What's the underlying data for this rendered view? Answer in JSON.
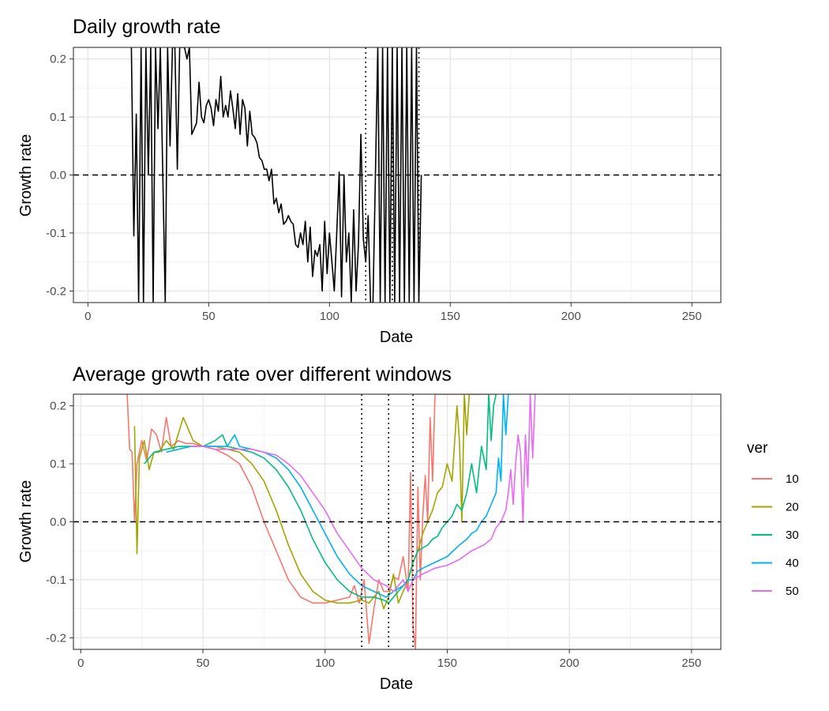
{
  "chart_data": [
    {
      "type": "line",
      "title": "Daily growth rate",
      "xlabel": "Date",
      "ylabel": "Growth rate",
      "xlim": [
        -6,
        262
      ],
      "ylim": [
        -0.22,
        0.22
      ],
      "x_ticks": [
        0,
        50,
        100,
        150,
        200,
        250
      ],
      "y_ticks": [
        0.2,
        0.1,
        0.0,
        -0.1,
        -0.2
      ],
      "x_tick_labels": [
        "0",
        "50",
        "100",
        "150",
        "200",
        "250"
      ],
      "y_tick_labels": [
        "0.2",
        "0.1",
        "0.0",
        "-0.1",
        "-0.2"
      ],
      "grid": true,
      "hline": 0,
      "vlines": [
        115,
        126,
        137
      ],
      "colors": {
        "line": "#000000"
      },
      "series": [
        {
          "x": [
            18,
            19,
            20,
            21,
            22,
            23,
            24,
            25,
            26,
            27,
            28,
            29,
            30,
            31,
            32,
            33,
            34,
            35,
            36,
            37,
            38,
            39,
            40,
            41,
            42,
            43,
            44,
            45,
            46,
            47,
            48,
            49,
            50,
            51,
            52,
            53,
            54,
            55,
            56,
            57,
            58,
            59,
            60,
            61,
            62,
            63,
            64,
            65,
            66,
            67,
            68,
            69,
            70,
            71,
            72,
            73,
            74,
            75,
            76,
            77,
            78,
            79,
            80,
            81,
            82,
            83,
            84,
            85,
            86,
            87,
            88,
            89,
            90,
            91,
            92,
            93,
            94,
            95,
            96,
            97,
            98,
            99,
            100,
            101,
            102,
            103,
            104,
            105,
            106,
            107,
            108,
            109,
            110,
            111,
            112,
            113,
            114,
            115,
            116,
            117,
            118,
            119,
            120,
            121,
            122,
            123,
            124,
            125,
            126,
            127,
            128,
            129,
            130,
            131,
            132,
            133,
            134,
            135,
            136,
            137,
            138
          ],
          "values": [
            0.22,
            -0.105,
            0.105,
            -0.22,
            0.22,
            -0.22,
            0.22,
            0.0,
            0.22,
            -0.22,
            0.22,
            0.08,
            0.22,
            0.0,
            -0.22,
            0.22,
            0.05,
            0.22,
            0.22,
            0.01,
            0.22,
            0.22,
            0.22,
            0.2,
            0.22,
            0.07,
            0.08,
            0.09,
            0.16,
            0.1,
            0.09,
            0.12,
            0.13,
            0.115,
            0.085,
            0.13,
            0.11,
            0.17,
            0.1,
            0.12,
            0.1,
            0.145,
            0.115,
            0.08,
            0.14,
            0.07,
            0.13,
            0.115,
            0.05,
            0.11,
            0.07,
            0.065,
            0.055,
            0.03,
            0.025,
            0.01,
            0.01,
            -0.01,
            0.01,
            -0.05,
            -0.04,
            -0.065,
            -0.05,
            -0.085,
            -0.08,
            -0.07,
            -0.08,
            -0.085,
            -0.12,
            -0.125,
            -0.1,
            -0.12,
            -0.08,
            -0.15,
            -0.09,
            -0.175,
            -0.13,
            -0.14,
            -0.12,
            -0.2,
            -0.08,
            -0.17,
            -0.1,
            -0.15,
            -0.2,
            -0.1,
            0.005,
            -0.21,
            0.0,
            -0.15,
            -0.1,
            -0.22,
            -0.06,
            -0.2,
            -0.12,
            0.07,
            -0.11,
            -0.15,
            -0.07,
            -0.22,
            -0.22,
            0.0,
            0.22,
            -0.22,
            0.22,
            -0.22,
            0.22,
            -0.22,
            0.22,
            -0.22,
            0.22,
            -0.22,
            0.22,
            -0.22,
            0.22,
            -0.22,
            0.22,
            -0.22,
            0.22,
            -0.22,
            0.0
          ]
        }
      ]
    },
    {
      "type": "line",
      "title": "Average growth rate over different windows",
      "xlabel": "Date",
      "ylabel": "Growth rate",
      "xlim": [
        -3,
        262
      ],
      "ylim": [
        -0.22,
        0.22
      ],
      "x_ticks": [
        0,
        50,
        100,
        150,
        200,
        250
      ],
      "y_ticks": [
        0.2,
        0.1,
        0.0,
        -0.1,
        -0.2
      ],
      "x_tick_labels": [
        "0",
        "50",
        "100",
        "150",
        "200",
        "250"
      ],
      "y_tick_labels": [
        "0.2",
        "0.1",
        "0.0",
        "-0.1",
        "-0.2"
      ],
      "grid": true,
      "hline": 0,
      "vlines": [
        115,
        126,
        136
      ],
      "legend": {
        "title": "ver",
        "position": "right"
      },
      "series": [
        {
          "name": "10",
          "color": "#F8766D",
          "x": [
            19,
            20,
            21,
            22,
            23,
            25,
            27,
            29,
            31,
            33,
            35,
            37,
            40,
            43,
            46,
            50,
            55,
            60,
            65,
            70,
            75,
            80,
            85,
            90,
            95,
            100,
            105,
            110,
            112,
            114,
            116,
            118,
            120,
            122,
            124,
            126,
            128,
            130,
            132,
            134,
            135,
            136,
            137,
            138,
            139,
            140,
            141,
            142,
            143,
            144,
            145,
            146,
            147,
            148,
            149,
            150,
            151,
            152,
            153,
            154,
            155,
            156,
            157,
            158,
            159,
            160,
            161,
            162,
            163,
            164,
            165,
            166,
            167,
            168,
            169,
            170
          ],
          "values": [
            0.22,
            0.125,
            0.12,
            0.0,
            0.1,
            0.14,
            0.105,
            0.16,
            0.15,
            0.12,
            0.18,
            0.13,
            0.14,
            0.135,
            0.135,
            0.13,
            0.125,
            0.115,
            0.1,
            0.06,
            0.0,
            -0.05,
            -0.1,
            -0.13,
            -0.14,
            -0.14,
            -0.135,
            -0.13,
            -0.11,
            -0.14,
            -0.1,
            -0.21,
            -0.15,
            -0.1,
            -0.12,
            -0.12,
            -0.095,
            -0.1,
            -0.06,
            -0.12,
            0.085,
            -0.18,
            -0.22,
            0.06,
            -0.1,
            0.01,
            0.08,
            0.0,
            0.18,
            0.07,
            0.22,
            0.22,
            0.22,
            0.22,
            0.22,
            0.22,
            0.22,
            0.22,
            0.22,
            0.22,
            0.22,
            0.22,
            0.22,
            0.22,
            0.22,
            0.22,
            0.22,
            0.22,
            0.22,
            0.22,
            0.22,
            0.22,
            0.22,
            0.22,
            0.22,
            0.22
          ]
        },
        {
          "name": "20",
          "color": "#A3A500",
          "x": [
            22,
            23,
            24,
            26,
            28,
            30,
            32,
            35,
            38,
            42,
            46,
            50,
            55,
            60,
            65,
            70,
            75,
            80,
            85,
            90,
            95,
            100,
            105,
            110,
            115,
            118,
            120,
            122,
            124,
            126,
            128,
            130,
            132,
            134,
            136,
            138,
            140,
            142,
            144,
            146,
            148,
            150,
            152,
            154,
            155,
            156,
            157,
            158,
            159,
            160,
            161,
            162,
            163,
            164
          ],
          "values": [
            0.165,
            -0.055,
            0.11,
            0.14,
            0.09,
            0.12,
            0.12,
            0.14,
            0.125,
            0.18,
            0.14,
            0.13,
            0.13,
            0.125,
            0.12,
            0.1,
            0.07,
            0.02,
            -0.04,
            -0.09,
            -0.12,
            -0.135,
            -0.14,
            -0.14,
            -0.135,
            -0.14,
            -0.13,
            -0.12,
            -0.15,
            -0.13,
            -0.09,
            -0.14,
            -0.12,
            -0.1,
            -0.07,
            -0.05,
            -0.02,
            0.0,
            0.02,
            0.05,
            0.06,
            0.1,
            0.07,
            0.2,
            0.14,
            0.0,
            0.22,
            0.15,
            0.22,
            0.22,
            0.22,
            0.22,
            0.22,
            0.22
          ]
        },
        {
          "name": "30",
          "color": "#00BF7D",
          "x": [
            26,
            30,
            35,
            40,
            45,
            50,
            55,
            58,
            60,
            65,
            70,
            75,
            80,
            85,
            90,
            95,
            100,
            105,
            110,
            115,
            120,
            124,
            126,
            128,
            130,
            132,
            134,
            136,
            138,
            140,
            142,
            144,
            146,
            148,
            150,
            152,
            154,
            156,
            158,
            160,
            162,
            164,
            166,
            167,
            168,
            169,
            170
          ],
          "values": [
            0.1,
            0.12,
            0.125,
            0.13,
            0.13,
            0.13,
            0.14,
            0.15,
            0.13,
            0.125,
            0.12,
            0.11,
            0.09,
            0.06,
            0.02,
            -0.03,
            -0.07,
            -0.1,
            -0.12,
            -0.13,
            -0.13,
            -0.135,
            -0.14,
            -0.13,
            -0.12,
            -0.11,
            -0.1,
            -0.07,
            -0.05,
            -0.045,
            -0.04,
            -0.03,
            -0.025,
            -0.01,
            0.0,
            0.01,
            0.03,
            0.02,
            0.05,
            0.1,
            0.05,
            0.13,
            0.09,
            0.22,
            0.14,
            0.2,
            0.22
          ]
        },
        {
          "name": "40",
          "color": "#00B0F6",
          "x": [
            35,
            40,
            45,
            50,
            55,
            60,
            63,
            65,
            70,
            75,
            80,
            85,
            90,
            95,
            100,
            105,
            110,
            115,
            120,
            125,
            128,
            130,
            132,
            134,
            136,
            138,
            140,
            145,
            150,
            155,
            158,
            160,
            162,
            164,
            166,
            168,
            170,
            171,
            172,
            173,
            174,
            175,
            176
          ],
          "values": [
            0.12,
            0.125,
            0.13,
            0.13,
            0.13,
            0.13,
            0.15,
            0.13,
            0.125,
            0.12,
            0.11,
            0.09,
            0.06,
            0.02,
            -0.02,
            -0.06,
            -0.09,
            -0.11,
            -0.12,
            -0.13,
            -0.12,
            -0.115,
            -0.11,
            -0.1,
            -0.1,
            -0.085,
            -0.08,
            -0.07,
            -0.06,
            -0.04,
            -0.03,
            -0.02,
            -0.015,
            0.0,
            0.01,
            0.03,
            0.05,
            0.11,
            0.07,
            0.22,
            0.15,
            0.22,
            0.22
          ]
        },
        {
          "name": "50",
          "color": "#E76BF3",
          "x": [
            45,
            50,
            55,
            60,
            65,
            70,
            75,
            80,
            85,
            90,
            95,
            100,
            105,
            110,
            115,
            120,
            125,
            128,
            130,
            132,
            134,
            136,
            138,
            140,
            145,
            150,
            155,
            160,
            165,
            168,
            170,
            172,
            174,
            175,
            176,
            177,
            178,
            179,
            180,
            181,
            182,
            183,
            184,
            185,
            186
          ],
          "values": [
            0.13,
            0.13,
            0.125,
            0.125,
            0.125,
            0.125,
            0.12,
            0.115,
            0.1,
            0.08,
            0.05,
            0.02,
            -0.02,
            -0.05,
            -0.08,
            -0.1,
            -0.11,
            -0.12,
            -0.11,
            -0.1,
            -0.12,
            -0.1,
            -0.095,
            -0.09,
            -0.08,
            -0.075,
            -0.065,
            -0.05,
            -0.04,
            -0.03,
            -0.01,
            0.0,
            0.02,
            0.05,
            0.09,
            0.03,
            0.1,
            0.15,
            0.12,
            0.0,
            0.15,
            0.06,
            0.22,
            0.11,
            0.22
          ]
        }
      ]
    }
  ]
}
